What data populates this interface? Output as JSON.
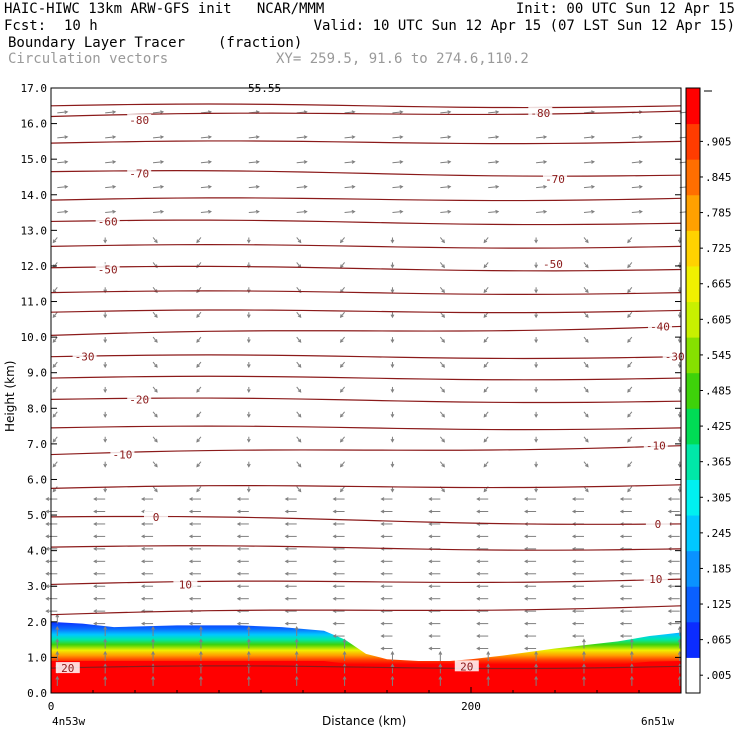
{
  "header": {
    "title": "HAIC-HIWC 13km ARW-GFS init   NCAR/MMM",
    "init": "Init: 00 UTC Sun 12 Apr 15",
    "fcst_label": "Fcst:",
    "fcst_value": "10 h",
    "valid": "Valid: 10 UTC Sun 12 Apr 15 (07 LST Sun 12 Apr 15)",
    "field_name": "Boundary Layer Tracer",
    "field_units": "(fraction)",
    "vector_field": "Circulation vectors",
    "xy_range": "XY= 259.5, 91.6 to 274.6,110.2"
  },
  "colors": {
    "contour": "#8b1a1a",
    "vector": "#808080",
    "tracer_low": "#0000ff",
    "tracer_high": "#ff0000"
  },
  "chart_data": {
    "type": "heatmap",
    "title": "Boundary Layer Tracer (fraction)",
    "xlabel": "Distance (km)",
    "ylabel": "Height (km)",
    "xlim": [
      0,
      300
    ],
    "ylim": [
      0,
      17
    ],
    "x_ticks": [
      {
        "value": 0,
        "label": "0"
      },
      {
        "value": 200,
        "label": "200"
      }
    ],
    "x_end_labels": {
      "left": "4n53w",
      "right": "6n51w"
    },
    "y_ticks": [
      0,
      1,
      2,
      3,
      4,
      5,
      6,
      7,
      8,
      9,
      10,
      11,
      12,
      13,
      14,
      15,
      16,
      17
    ],
    "y_tick_labels": [
      "0.0",
      "1.0",
      "2.0",
      "3.0",
      "4.0",
      "5.0",
      "6.0",
      "7.0",
      "8.0",
      "9.0",
      "10.0",
      "11.0",
      "12.0",
      "13.0",
      "14.0",
      "15.0",
      "16.0",
      "17.0"
    ],
    "colorbar": {
      "labels": [
        ".005",
        ".065",
        ".125",
        ".185",
        ".245",
        ".305",
        ".365",
        ".425",
        ".485",
        ".545",
        ".605",
        ".665",
        ".725",
        ".785",
        ".845",
        ".905"
      ],
      "colors": [
        "#ffffff",
        "#0b2cff",
        "#0a60ff",
        "#0a92ff",
        "#00c8ff",
        "#00f0f0",
        "#00e8a8",
        "#00dc55",
        "#3ed20a",
        "#86e000",
        "#c8f000",
        "#f0f000",
        "#ffd200",
        "#ffa000",
        "#ff6e00",
        "#ff3c00",
        "#ff0000"
      ]
    },
    "tracer_top_km": [
      {
        "x": 0,
        "y": 2.0
      },
      {
        "x": 15,
        "y": 1.95
      },
      {
        "x": 30,
        "y": 1.85
      },
      {
        "x": 60,
        "y": 1.9
      },
      {
        "x": 90,
        "y": 1.9
      },
      {
        "x": 110,
        "y": 1.85
      },
      {
        "x": 130,
        "y": 1.75
      },
      {
        "x": 140,
        "y": 1.5
      },
      {
        "x": 150,
        "y": 1.1
      },
      {
        "x": 160,
        "y": 0.95
      },
      {
        "x": 175,
        "y": 0.9
      },
      {
        "x": 190,
        "y": 0.9
      },
      {
        "x": 200,
        "y": 0.95
      },
      {
        "x": 215,
        "y": 1.05
      },
      {
        "x": 240,
        "y": 1.25
      },
      {
        "x": 270,
        "y": 1.45
      },
      {
        "x": 285,
        "y": 1.6
      },
      {
        "x": 300,
        "y": 1.7
      }
    ],
    "isotherms": [
      {
        "label": "-80",
        "left": 16.2,
        "right": 16.35,
        "label_pos": [
          {
            "x": 42,
            "y": 16.1
          },
          {
            "x": 233,
            "y": 16.3
          }
        ]
      },
      {
        "label": "-70",
        "left": 14.65,
        "right": 14.55,
        "label_pos": [
          {
            "x": 42,
            "y": 14.6
          },
          {
            "x": 240,
            "y": 14.45
          }
        ]
      },
      {
        "label": "-60",
        "left": 13.25,
        "right": 13.2,
        "label_pos": [
          {
            "x": 27,
            "y": 13.25
          }
        ]
      },
      {
        "label": "-50",
        "left": 11.95,
        "right": 11.9,
        "label_pos": [
          {
            "x": 27,
            "y": 11.9
          },
          {
            "x": 239,
            "y": 12.05
          }
        ]
      },
      {
        "label": "-40",
        "left": 10.05,
        "right": 10.3,
        "label_pos": [
          {
            "x": 290,
            "y": 10.3
          }
        ]
      },
      {
        "label": "-30",
        "left": 9.45,
        "right": 9.45,
        "label_pos": [
          {
            "x": 16,
            "y": 9.45
          },
          {
            "x": 297,
            "y": 9.45
          }
        ]
      },
      {
        "label": "-20",
        "left": 8.25,
        "right": 8.2,
        "label_pos": [
          {
            "x": 42,
            "y": 8.25
          }
        ]
      },
      {
        "label": "-10",
        "left": 6.7,
        "right": 6.95,
        "label_pos": [
          {
            "x": 34,
            "y": 6.7
          },
          {
            "x": 288,
            "y": 6.95
          }
        ]
      },
      {
        "label": "0",
        "left": 4.95,
        "right": 4.75,
        "label_pos": [
          {
            "x": 50,
            "y": 4.95
          },
          {
            "x": 289,
            "y": 4.75
          }
        ]
      },
      {
        "label": "10",
        "left": 3.05,
        "right": 3.2,
        "label_pos": [
          {
            "x": 64,
            "y": 3.05
          },
          {
            "x": 288,
            "y": 3.2
          }
        ]
      },
      {
        "label": "20",
        "left": 0.7,
        "right": 0.75,
        "label_pos": [
          {
            "x": 8,
            "y": 0.7
          },
          {
            "x": 198,
            "y": 0.75
          }
        ]
      }
    ],
    "unlabeled_isotherms": [
      {
        "left": 16.5,
        "right": 16.5
      },
      {
        "left": 15.45,
        "right": 15.5
      },
      {
        "left": 13.85,
        "right": 13.9
      },
      {
        "left": 12.55,
        "right": 12.55
      },
      {
        "left": 11.25,
        "right": 11.25
      },
      {
        "left": 10.7,
        "right": 10.75
      },
      {
        "left": 8.85,
        "right": 8.85
      },
      {
        "left": 7.45,
        "right": 7.45
      },
      {
        "left": 5.75,
        "right": 5.85
      },
      {
        "left": 4.1,
        "right": 4.05
      },
      {
        "left": 2.2,
        "right": 2.45
      }
    ],
    "top_label": "55.55"
  }
}
